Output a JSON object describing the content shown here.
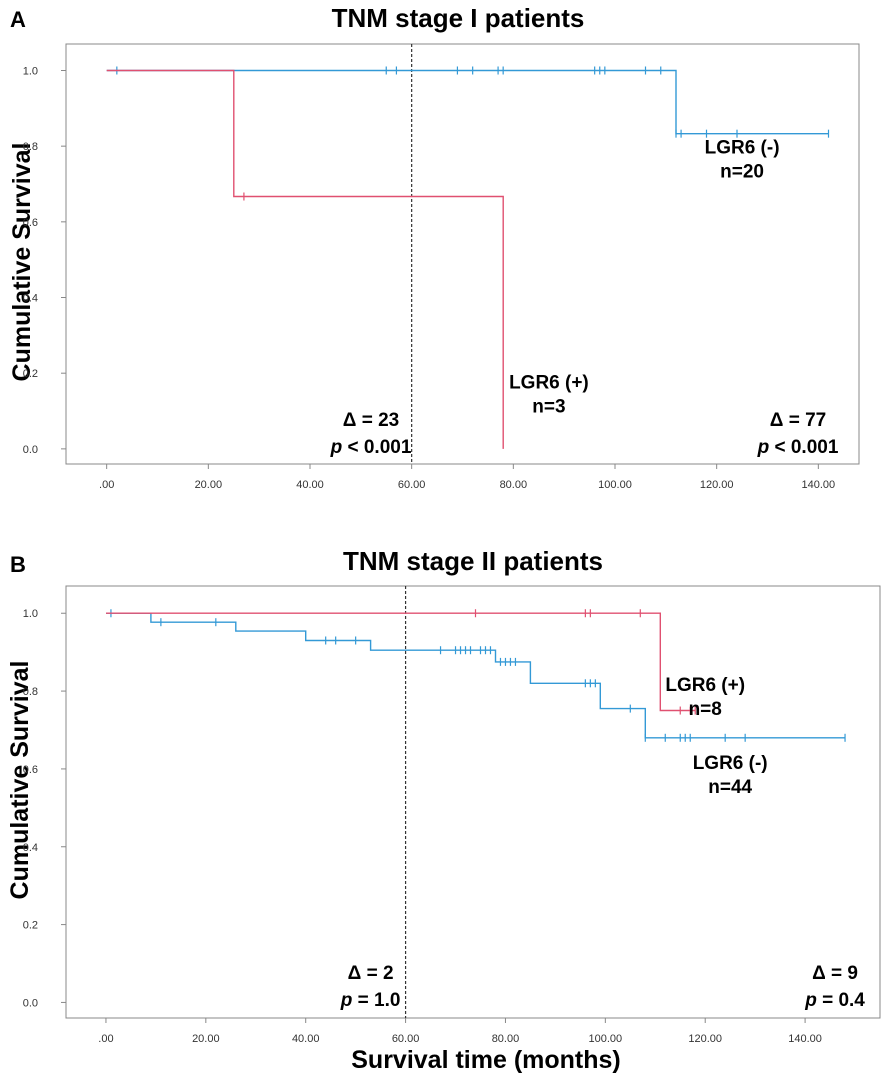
{
  "colors": {
    "positive": "#e05070",
    "negative": "#3399d6",
    "frame": "#888888",
    "refline": "#333333"
  },
  "chart_data": [
    {
      "type": "line",
      "panel": "A",
      "title": "TNM stage I patients",
      "xlabel": "",
      "ylabel": "Cumulative Survival",
      "xlim": [
        -8,
        148
      ],
      "ylim": [
        -0.04,
        1.07
      ],
      "xticks": [
        0,
        20,
        40,
        60,
        80,
        100,
        120,
        140
      ],
      "xtick_labels": [
        ".00",
        "20.00",
        "40.00",
        "60.00",
        "80.00",
        "100.00",
        "120.00",
        "140.00"
      ],
      "yticks": [
        0,
        0.2,
        0.4,
        0.6,
        0.8,
        1.0
      ],
      "ytick_labels": [
        "0.0",
        "0.2",
        "0.4",
        "0.6",
        "0.8",
        "1.0"
      ],
      "reference_line_x": 60,
      "series": [
        {
          "name": "LGR6 (-)",
          "n": "n=20",
          "color_key": "negative",
          "steps": [
            [
              0,
              1.0
            ],
            [
              112,
              1.0
            ],
            [
              112,
              0.833
            ],
            [
              142,
              0.833
            ]
          ],
          "censored": [
            [
              2,
              1.0
            ],
            [
              55,
              1.0
            ],
            [
              57,
              1.0
            ],
            [
              69,
              1.0
            ],
            [
              72,
              1.0
            ],
            [
              77,
              1.0
            ],
            [
              78,
              1.0
            ],
            [
              96,
              1.0
            ],
            [
              97,
              1.0
            ],
            [
              98,
              1.0
            ],
            [
              106,
              1.0
            ],
            [
              109,
              1.0
            ],
            [
              112,
              0.833
            ],
            [
              113,
              0.833
            ],
            [
              118,
              0.833
            ],
            [
              124,
              0.833
            ],
            [
              142,
              0.833
            ]
          ]
        },
        {
          "name": "LGR6 (+)",
          "n": "n=3",
          "color_key": "positive",
          "steps": [
            [
              0,
              1.0
            ],
            [
              25,
              1.0
            ],
            [
              25,
              0.667
            ],
            [
              78,
              0.667
            ],
            [
              78,
              0.0
            ]
          ],
          "censored": [
            [
              27,
              0.667
            ]
          ]
        }
      ],
      "annotations": [
        {
          "id": "neg",
          "lines": [
            "LGR6 (-)",
            "n=20"
          ],
          "x": 125,
          "y": 0.78
        },
        {
          "id": "pos",
          "lines": [
            "LGR6 (+)",
            "n=3"
          ],
          "x": 87,
          "y": 0.16
        },
        {
          "id": "d60",
          "delta": "Δ = 23",
          "p_prefix": "p",
          "p_rest": " < 0.001",
          "x": 52,
          "y": 0.06
        },
        {
          "id": "dend",
          "delta": "Δ = 77",
          "p_prefix": "p",
          "p_rest": " < 0.001",
          "x": 136,
          "y": 0.06
        }
      ]
    },
    {
      "type": "line",
      "panel": "B",
      "title": "TNM stage II patients",
      "xlabel": "Survival time (months)",
      "ylabel": "Cumulative Survival",
      "xlim": [
        -8,
        155
      ],
      "ylim": [
        -0.04,
        1.07
      ],
      "xticks": [
        0,
        20,
        40,
        60,
        80,
        100,
        120,
        140
      ],
      "xtick_labels": [
        ".00",
        "20.00",
        "40.00",
        "60.00",
        "80.00",
        "100.00",
        "120.00",
        "140.00"
      ],
      "yticks": [
        0,
        0.2,
        0.4,
        0.6,
        0.8,
        1.0
      ],
      "ytick_labels": [
        "0.0",
        "0.2",
        "0.4",
        "0.6",
        "0.8",
        "1.0"
      ],
      "reference_line_x": 60,
      "series": [
        {
          "name": "LGR6 (-)",
          "n": "n=44",
          "color_key": "negative",
          "steps": [
            [
              0,
              1.0
            ],
            [
              9,
              1.0
            ],
            [
              9,
              0.977
            ],
            [
              26,
              0.977
            ],
            [
              26,
              0.954
            ],
            [
              40,
              0.954
            ],
            [
              40,
              0.93
            ],
            [
              53,
              0.93
            ],
            [
              53,
              0.905
            ],
            [
              78,
              0.905
            ],
            [
              78,
              0.875
            ],
            [
              85,
              0.875
            ],
            [
              85,
              0.82
            ],
            [
              99,
              0.82
            ],
            [
              99,
              0.755
            ],
            [
              108,
              0.755
            ],
            [
              108,
              0.68
            ],
            [
              148,
              0.68
            ]
          ],
          "censored": [
            [
              1,
              1.0
            ],
            [
              11,
              0.977
            ],
            [
              22,
              0.977
            ],
            [
              44,
              0.93
            ],
            [
              46,
              0.93
            ],
            [
              50,
              0.93
            ],
            [
              67,
              0.905
            ],
            [
              70,
              0.905
            ],
            [
              71,
              0.905
            ],
            [
              72,
              0.905
            ],
            [
              73,
              0.905
            ],
            [
              75,
              0.905
            ],
            [
              76,
              0.905
            ],
            [
              77,
              0.905
            ],
            [
              79,
              0.875
            ],
            [
              80,
              0.875
            ],
            [
              81,
              0.875
            ],
            [
              82,
              0.875
            ],
            [
              96,
              0.82
            ],
            [
              97,
              0.82
            ],
            [
              98,
              0.82
            ],
            [
              105,
              0.755
            ],
            [
              108,
              0.68
            ],
            [
              112,
              0.68
            ],
            [
              115,
              0.68
            ],
            [
              116,
              0.68
            ],
            [
              117,
              0.68
            ],
            [
              124,
              0.68
            ],
            [
              128,
              0.68
            ],
            [
              148,
              0.68
            ]
          ]
        },
        {
          "name": "LGR6 (+)",
          "n": "n=8",
          "color_key": "positive",
          "steps": [
            [
              0,
              1.0
            ],
            [
              111,
              1.0
            ],
            [
              111,
              0.75
            ],
            [
              118,
              0.75
            ]
          ],
          "censored": [
            [
              74,
              1.0
            ],
            [
              96,
              1.0
            ],
            [
              97,
              1.0
            ],
            [
              107,
              1.0
            ],
            [
              115,
              0.75
            ],
            [
              117,
              0.75
            ],
            [
              118,
              0.75
            ]
          ]
        }
      ],
      "annotations": [
        {
          "id": "pos",
          "lines": [
            "LGR6 (+)",
            "n=8"
          ],
          "x": 120,
          "y": 0.8
        },
        {
          "id": "neg",
          "lines": [
            "LGR6 (-)",
            "n=44"
          ],
          "x": 125,
          "y": 0.6
        },
        {
          "id": "d60",
          "delta": "Δ = 2",
          "p_prefix": "p",
          "p_rest": " = 1.0",
          "x": 53,
          "y": 0.06
        },
        {
          "id": "dend",
          "delta": "Δ = 9",
          "p_prefix": "p",
          "p_rest": " = 0.4",
          "x": 146,
          "y": 0.06
        }
      ]
    }
  ]
}
